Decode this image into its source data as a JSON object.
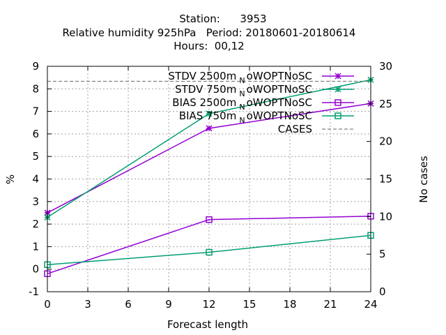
{
  "chart_data": {
    "type": "line",
    "title_lines": [
      "Station:      3953",
      "Relative humidity 925hPa   Period: 20180601-20180614",
      "Hours:  00,12"
    ],
    "xlabel": "Forecast length",
    "ylabel": "%",
    "y2label": "No cases",
    "xlim": [
      0,
      24
    ],
    "ylim": [
      -1,
      9
    ],
    "y2lim": [
      0,
      30
    ],
    "xticks": [
      "0",
      "3",
      "6",
      "9",
      "12",
      "15",
      "18",
      "21",
      "24"
    ],
    "yticks": [
      "-1",
      "0",
      "1",
      "2",
      "3",
      "4",
      "5",
      "6",
      "7",
      "8",
      "9"
    ],
    "y2ticks": [
      "0",
      "5",
      "10",
      "15",
      "20",
      "25",
      "30"
    ],
    "grid": true,
    "legend_position": "top-right",
    "series": [
      {
        "name": "STDV 2500m",
        "sub": "N",
        "suffix": "oWOPTNoSC",
        "color": "#9400d3",
        "marker": "star",
        "axis": "y",
        "x": [
          0,
          12,
          24
        ],
        "y": [
          2.5,
          6.25,
          7.35
        ]
      },
      {
        "name": "STDV 750m",
        "sub": "N",
        "suffix": "oWOPTNoSC",
        "color": "#009e73",
        "marker": "star",
        "axis": "y",
        "x": [
          0,
          12,
          24
        ],
        "y": [
          2.3,
          6.9,
          8.4
        ]
      },
      {
        "name": "BIAS 2500m",
        "sub": "N",
        "suffix": "oWOPTNoSC",
        "color": "#9400d3",
        "marker": "square",
        "axis": "y",
        "x": [
          0,
          12,
          24
        ],
        "y": [
          -0.2,
          2.2,
          2.35
        ]
      },
      {
        "name": "BIAS 750m",
        "sub": "N",
        "suffix": "oWOPTNoSC",
        "color": "#009e73",
        "marker": "square",
        "axis": "y",
        "x": [
          0,
          12,
          24
        ],
        "y": [
          0.2,
          0.75,
          1.5
        ]
      },
      {
        "name": "CASES",
        "sub": "",
        "suffix": "",
        "color": "#808080",
        "marker": "none",
        "dashed": true,
        "axis": "y2",
        "x": [
          0,
          24
        ],
        "y": [
          28,
          28
        ]
      }
    ]
  }
}
